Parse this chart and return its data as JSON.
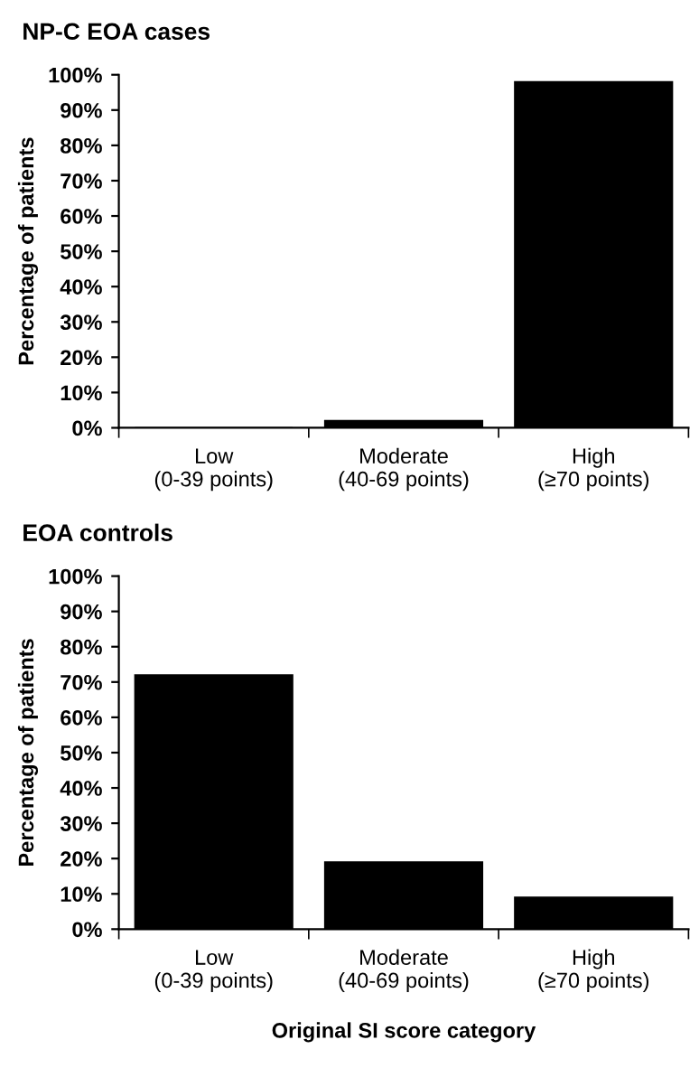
{
  "chart_data": [
    {
      "type": "bar",
      "title": "NP-C EOA cases",
      "ylabel": "Percentage of patients",
      "categories": [
        "Low\n(0-39 points)",
        "Moderate\n(40-69 points)",
        "High\n(≥70 points)"
      ],
      "values": [
        0,
        2,
        98
      ],
      "color": "#000000",
      "ylim": [
        0,
        100
      ],
      "yticks": [
        {
          "value": 0,
          "label": "0%"
        },
        {
          "value": 10,
          "label": "10%"
        },
        {
          "value": 20,
          "label": "20%"
        },
        {
          "value": 30,
          "label": "30%"
        },
        {
          "value": 40,
          "label": "40%"
        },
        {
          "value": 50,
          "label": "50%"
        },
        {
          "value": 60,
          "label": "60%"
        },
        {
          "value": 70,
          "label": "70%"
        },
        {
          "value": 80,
          "label": "80%"
        },
        {
          "value": 90,
          "label": "90%"
        },
        {
          "value": 100,
          "label": "100%"
        }
      ],
      "grid": false,
      "legend": false
    },
    {
      "type": "bar",
      "title": "EOA controls",
      "ylabel": "Percentage of patients",
      "xlabel": "Original SI score category",
      "categories": [
        "Low\n(0-39 points)",
        "Moderate\n(40-69 points)",
        "High\n(≥70 points)"
      ],
      "values": [
        72,
        19,
        9
      ],
      "color": "#000000",
      "ylim": [
        0,
        100
      ],
      "yticks": [
        {
          "value": 0,
          "label": "0%"
        },
        {
          "value": 10,
          "label": "10%"
        },
        {
          "value": 20,
          "label": "20%"
        },
        {
          "value": 30,
          "label": "30%"
        },
        {
          "value": 40,
          "label": "40%"
        },
        {
          "value": 50,
          "label": "50%"
        },
        {
          "value": 60,
          "label": "60%"
        },
        {
          "value": 70,
          "label": "70%"
        },
        {
          "value": 80,
          "label": "80%"
        },
        {
          "value": 90,
          "label": "90%"
        },
        {
          "value": 100,
          "label": "100%"
        }
      ],
      "grid": false,
      "legend": false
    }
  ]
}
